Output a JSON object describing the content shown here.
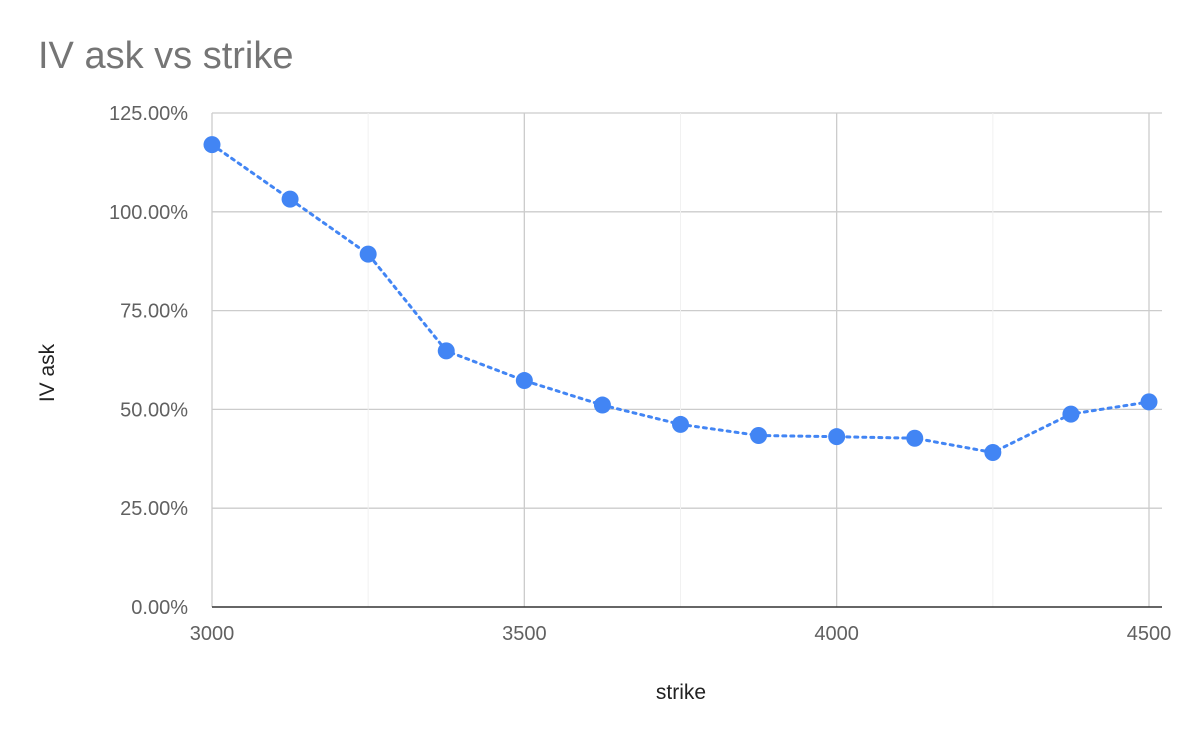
{
  "chart_data": {
    "type": "line",
    "title": "IV ask vs strike",
    "xlabel": "strike",
    "ylabel": "IV ask",
    "xlim": [
      3000,
      4500
    ],
    "ylim": [
      0,
      125
    ],
    "x_ticks": [
      3000,
      3500,
      4000,
      4500
    ],
    "x_tick_labels": [
      "3000",
      "3500",
      "4000",
      "4500"
    ],
    "y_ticks": [
      0,
      25,
      50,
      75,
      100,
      125
    ],
    "y_tick_labels": [
      "0.00%",
      "25.00%",
      "50.00%",
      "75.00%",
      "100.00%",
      "125.00%"
    ],
    "x_minor_gridlines": [
      3250,
      3750,
      4250
    ],
    "grid": true,
    "legend": "none",
    "series": [
      {
        "color": "#4285f4",
        "line_style": "dotted",
        "marker": "circle",
        "x": [
          3000,
          3125,
          3250,
          3375,
          3500,
          3625,
          3750,
          3875,
          4000,
          4125,
          4250,
          4375,
          4500
        ],
        "y": [
          117.0,
          103.2,
          89.3,
          64.8,
          57.3,
          51.1,
          46.2,
          43.4,
          43.1,
          42.7,
          39.1,
          48.8,
          51.9
        ]
      }
    ]
  }
}
